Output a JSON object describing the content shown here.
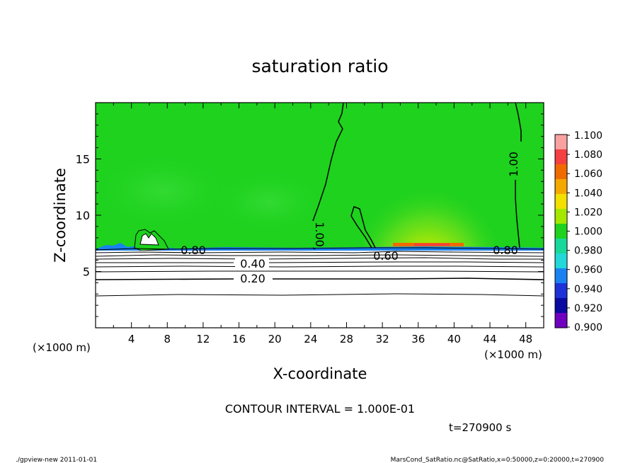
{
  "chart_data": {
    "type": "heatmap",
    "title": "saturation ratio",
    "xlabel": "X-coordinate",
    "ylabel": "Z-coordinate",
    "x_unit_left": "(×1000 m)",
    "x_unit_right": "(×1000 m)",
    "xlim": [
      0,
      50
    ],
    "ylim": [
      0,
      20
    ],
    "x_ticks": [
      4,
      8,
      12,
      16,
      20,
      24,
      28,
      32,
      36,
      40,
      44,
      48
    ],
    "y_ticks": [
      5,
      10,
      15
    ],
    "contour_interval_text": "CONTOUR INTERVAL = 1.000E-01",
    "time_text": "t=270900 s",
    "footer_left": "./gpview-new   2011-01-01",
    "footer_right": "MarsCond_SatRatio.nc@SatRatio,x=0:50000,z=0:20000,t=270900",
    "colorbar": {
      "values": [
        "1.100",
        "1.080",
        "1.060",
        "1.040",
        "1.020",
        "1.000",
        "0.980",
        "0.960",
        "0.940",
        "0.920",
        "0.900"
      ],
      "colors_top_to_bottom": [
        "#f9a0a0",
        "#f44040",
        "#f06a00",
        "#f5a800",
        "#f2e000",
        "#a4e800",
        "#1ed21e",
        "#18d89a",
        "#22d8d8",
        "#1a82f0",
        "#1e32d8",
        "#0a0aa0",
        "#7000c0"
      ]
    },
    "fields": {
      "saturated_region_value": 1.0,
      "saturated_region_z_range": [
        7.3,
        20
      ],
      "max_value_near": {
        "x": 36,
        "z": 7.5,
        "value": 1.06
      }
    },
    "contour_labels": [
      {
        "text": "0.20",
        "x": 25,
        "z": 4.3
      },
      {
        "text": "0.40",
        "x": 25,
        "z": 5.6
      },
      {
        "text": "0.60",
        "x": 32.5,
        "z": 6.9
      },
      {
        "text": "0.80",
        "x": 10.5,
        "z": 7.0
      },
      {
        "text": "0.80",
        "x": 45,
        "z": 7.0
      },
      {
        "text": "1.00",
        "x": 24,
        "z": 8.1
      },
      {
        "text": "1.00",
        "x": 46.5,
        "z": 14.8
      }
    ],
    "contour_levels_below": [
      0.2,
      0.3,
      0.4,
      0.5,
      0.6,
      0.7,
      0.8,
      0.9,
      1.0
    ]
  }
}
